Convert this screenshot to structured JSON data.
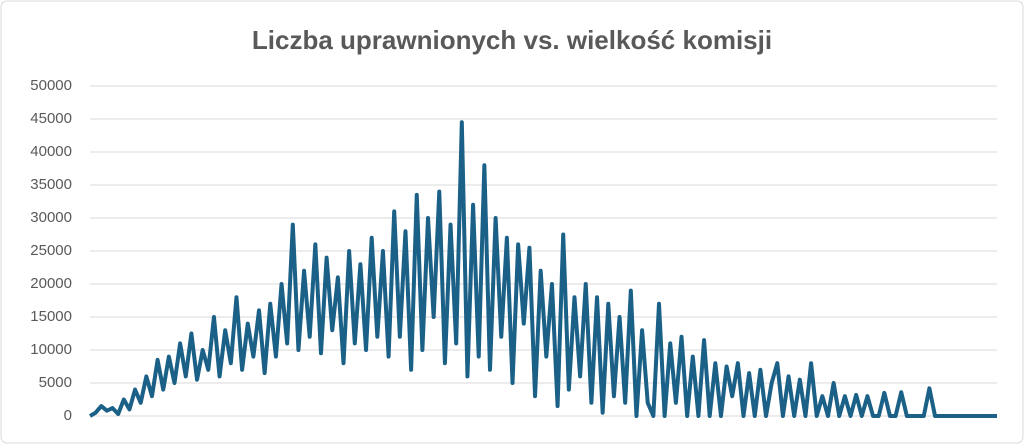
{
  "chart_data": {
    "type": "line",
    "title": "Liczba uprawnionych vs. wielkość komisji",
    "color": "#1b6087",
    "grid": true,
    "ylim": [
      0,
      50000
    ],
    "yticks": [
      0,
      5000,
      10000,
      15000,
      20000,
      25000,
      30000,
      35000,
      40000,
      45000,
      50000
    ],
    "values": [
      0,
      500,
      1500,
      800,
      1200,
      300,
      2500,
      1000,
      4000,
      2000,
      6000,
      3000,
      8500,
      4000,
      9000,
      5000,
      11000,
      6000,
      12500,
      5500,
      10000,
      7000,
      15000,
      6000,
      13000,
      8000,
      18000,
      7000,
      14000,
      9000,
      16000,
      6500,
      17000,
      9000,
      20000,
      11000,
      29000,
      10000,
      22000,
      12000,
      26000,
      9500,
      24000,
      13000,
      21000,
      8000,
      25000,
      11000,
      23000,
      10000,
      27000,
      12000,
      25000,
      9000,
      31000,
      12000,
      28000,
      7000,
      33500,
      10000,
      30000,
      15000,
      34000,
      8000,
      29000,
      11000,
      44500,
      6000,
      32000,
      9000,
      38000,
      7000,
      30000,
      12000,
      27000,
      5000,
      26000,
      14000,
      25500,
      3000,
      22000,
      9000,
      20000,
      1500,
      27500,
      4000,
      18000,
      6000,
      20000,
      2000,
      18000,
      500,
      17000,
      3000,
      15000,
      2000,
      19000,
      0,
      13000,
      2000,
      0,
      17000,
      0,
      11000,
      2000,
      12000,
      0,
      9000,
      0,
      11500,
      0,
      8000,
      0,
      7500,
      3000,
      8000,
      0,
      6500,
      0,
      7000,
      0,
      5000,
      8000,
      0,
      6000,
      0,
      5500,
      0,
      8000,
      0,
      3000,
      0,
      5000,
      0,
      3000,
      0,
      3200,
      0,
      3000,
      0,
      0,
      3500,
      0,
      0,
      3600,
      0,
      0,
      0,
      0,
      4200,
      0,
      0,
      0,
      0,
      0,
      0,
      0,
      0,
      0,
      0,
      0,
      0
    ]
  }
}
